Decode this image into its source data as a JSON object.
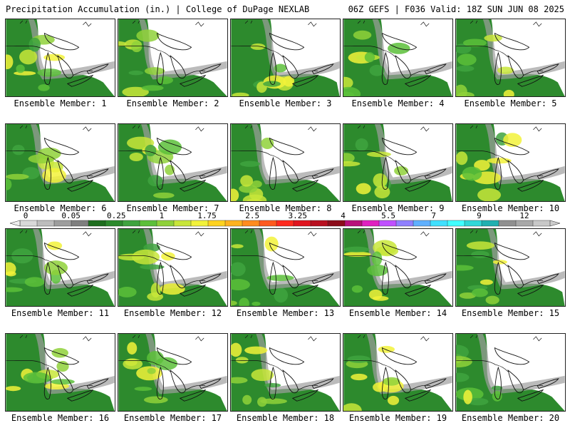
{
  "header": {
    "left": "Precipitation Accumulation (in.) | College of DuPage NEXLAB",
    "right": "06Z GEFS | F036 Valid: 18Z SUN JUN 08 2025"
  },
  "colorbar": {
    "tick_labels": [
      "0",
      "0.05",
      "0.25",
      "1",
      "1.75",
      "2.5",
      "3.25",
      "4",
      "5.5",
      "7",
      "9",
      "12"
    ],
    "colors": [
      "#d9d9d9",
      "#bdbdbd",
      "#9e9e9e",
      "#7f7f7f",
      "#1f6e1f",
      "#2d8a2d",
      "#3fa33f",
      "#5cbf3a",
      "#8fd13a",
      "#c8e63a",
      "#f2f23a",
      "#ffd21f",
      "#ffb21f",
      "#ff8c1f",
      "#ff5a1f",
      "#ff2a1f",
      "#e0141f",
      "#b80f1f",
      "#8c0c1a",
      "#b8107a",
      "#e020c0",
      "#c050ff",
      "#9080ff",
      "#60b0ff",
      "#40e0ff",
      "#40ffff",
      "#30d8d8",
      "#20b0b0",
      "#909090",
      "#a8a8a8",
      "#c8c8c8"
    ]
  },
  "members": [
    {
      "label": "Ensemble Member: 1"
    },
    {
      "label": "Ensemble Member: 2"
    },
    {
      "label": "Ensemble Member: 3"
    },
    {
      "label": "Ensemble Member: 4"
    },
    {
      "label": "Ensemble Member: 5"
    },
    {
      "label": "Ensemble Member: 6"
    },
    {
      "label": "Ensemble Member: 7"
    },
    {
      "label": "Ensemble Member: 8"
    },
    {
      "label": "Ensemble Member: 9"
    },
    {
      "label": "Ensemble Member: 10"
    },
    {
      "label": "Ensemble Member: 11"
    },
    {
      "label": "Ensemble Member: 12"
    },
    {
      "label": "Ensemble Member: 13"
    },
    {
      "label": "Ensemble Member: 14"
    },
    {
      "label": "Ensemble Member: 15"
    },
    {
      "label": "Ensemble Member: 16"
    },
    {
      "label": "Ensemble Member: 17"
    },
    {
      "label": "Ensemble Member: 18"
    },
    {
      "label": "Ensemble Member: 19"
    },
    {
      "label": "Ensemble Member: 20"
    }
  ]
}
